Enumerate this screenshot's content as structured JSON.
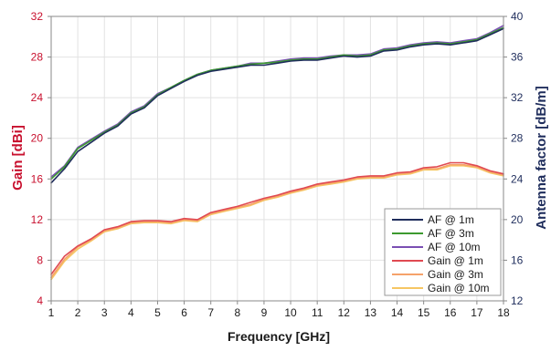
{
  "chart_data": {
    "type": "line",
    "xlabel": "Frequency [GHz]",
    "ylabel_left": "Gain [dBi]",
    "ylabel_right": "Antenna factor [dB/m]",
    "xlim": [
      1,
      18
    ],
    "ylim_left": [
      4,
      32
    ],
    "ylim_right": [
      12,
      40
    ],
    "x_ticks": [
      "1",
      "2",
      "3",
      "4",
      "5",
      "6",
      "7",
      "8",
      "9",
      "10",
      "11",
      "12",
      "13",
      "14",
      "15",
      "16",
      "17",
      "18"
    ],
    "y_left_ticks": [
      "4",
      "8",
      "12",
      "16",
      "20",
      "24",
      "28",
      "32"
    ],
    "y_right_ticks": [
      "12",
      "16",
      "20",
      "24",
      "28",
      "32",
      "36",
      "40"
    ],
    "grid": true,
    "legend_position": "bottom-right",
    "x": [
      1,
      1.5,
      2,
      2.5,
      3,
      3.5,
      4,
      4.5,
      5,
      5.5,
      6,
      6.5,
      7,
      7.5,
      8,
      8.5,
      9,
      9.5,
      10,
      10.5,
      11,
      11.5,
      12,
      12.5,
      13,
      13.5,
      14,
      14.5,
      15,
      15.5,
      16,
      16.5,
      17,
      17.5,
      18
    ],
    "series": [
      {
        "name": "AF @ 1m",
        "axis": "right",
        "color": "#1f2d5c",
        "values": [
          23.6,
          25.0,
          26.7,
          27.6,
          28.5,
          29.2,
          30.4,
          31.0,
          32.2,
          32.9,
          33.6,
          34.2,
          34.6,
          34.8,
          35.0,
          35.2,
          35.2,
          35.4,
          35.6,
          35.7,
          35.7,
          35.9,
          36.1,
          36.0,
          36.1,
          36.6,
          36.7,
          37.0,
          37.2,
          37.3,
          37.2,
          37.4,
          37.6,
          38.2,
          38.8
        ]
      },
      {
        "name": "AF @ 3m",
        "axis": "right",
        "color": "#3c9a2f",
        "values": [
          24.0,
          25.2,
          27.0,
          27.8,
          28.6,
          29.3,
          30.5,
          31.1,
          32.3,
          33.0,
          33.7,
          34.3,
          34.7,
          34.9,
          35.1,
          35.3,
          35.4,
          35.5,
          35.7,
          35.8,
          35.8,
          36.0,
          36.2,
          36.1,
          36.2,
          36.7,
          36.8,
          37.1,
          37.3,
          37.4,
          37.3,
          37.5,
          37.7,
          38.3,
          38.9
        ]
      },
      {
        "name": "AF @ 10m",
        "axis": "right",
        "color": "#7a4fb3",
        "values": [
          24.2,
          25.3,
          27.1,
          27.9,
          28.7,
          29.4,
          30.6,
          31.2,
          32.4,
          33.0,
          33.7,
          34.3,
          34.7,
          34.9,
          35.1,
          35.4,
          35.4,
          35.6,
          35.8,
          35.9,
          35.9,
          36.1,
          36.2,
          36.2,
          36.3,
          36.8,
          36.9,
          37.2,
          37.4,
          37.5,
          37.4,
          37.6,
          37.8,
          38.4,
          39.1
        ]
      },
      {
        "name": "Gain @ 1m",
        "axis": "left",
        "color": "#e04a52",
        "values": [
          6.6,
          8.4,
          9.4,
          10.1,
          11.0,
          11.3,
          11.8,
          11.9,
          11.9,
          11.8,
          12.1,
          12.0,
          12.7,
          13.0,
          13.3,
          13.7,
          14.1,
          14.4,
          14.8,
          15.1,
          15.5,
          15.7,
          15.9,
          16.2,
          16.3,
          16.3,
          16.6,
          16.7,
          17.1,
          17.2,
          17.6,
          17.6,
          17.3,
          16.8,
          16.5
        ]
      },
      {
        "name": "Gain @ 3m",
        "axis": "left",
        "color": "#f5a26a",
        "values": [
          6.3,
          8.1,
          9.3,
          10.0,
          10.9,
          11.2,
          11.7,
          11.8,
          11.8,
          11.7,
          12.0,
          11.9,
          12.6,
          12.9,
          13.2,
          13.5,
          14.0,
          14.3,
          14.7,
          15.0,
          15.4,
          15.6,
          15.8,
          16.1,
          16.2,
          16.2,
          16.5,
          16.6,
          17.0,
          17.0,
          17.4,
          17.4,
          17.2,
          16.7,
          16.4
        ]
      },
      {
        "name": "Gain @ 10m",
        "axis": "left",
        "color": "#f6c663",
        "values": [
          6.1,
          7.9,
          9.1,
          9.9,
          10.8,
          11.1,
          11.6,
          11.7,
          11.7,
          11.6,
          11.9,
          11.8,
          12.5,
          12.8,
          13.1,
          13.4,
          13.9,
          14.2,
          14.6,
          14.9,
          15.3,
          15.5,
          15.7,
          16.0,
          16.1,
          16.1,
          16.4,
          16.5,
          16.9,
          16.9,
          17.3,
          17.3,
          17.1,
          16.6,
          16.3
        ]
      }
    ]
  }
}
